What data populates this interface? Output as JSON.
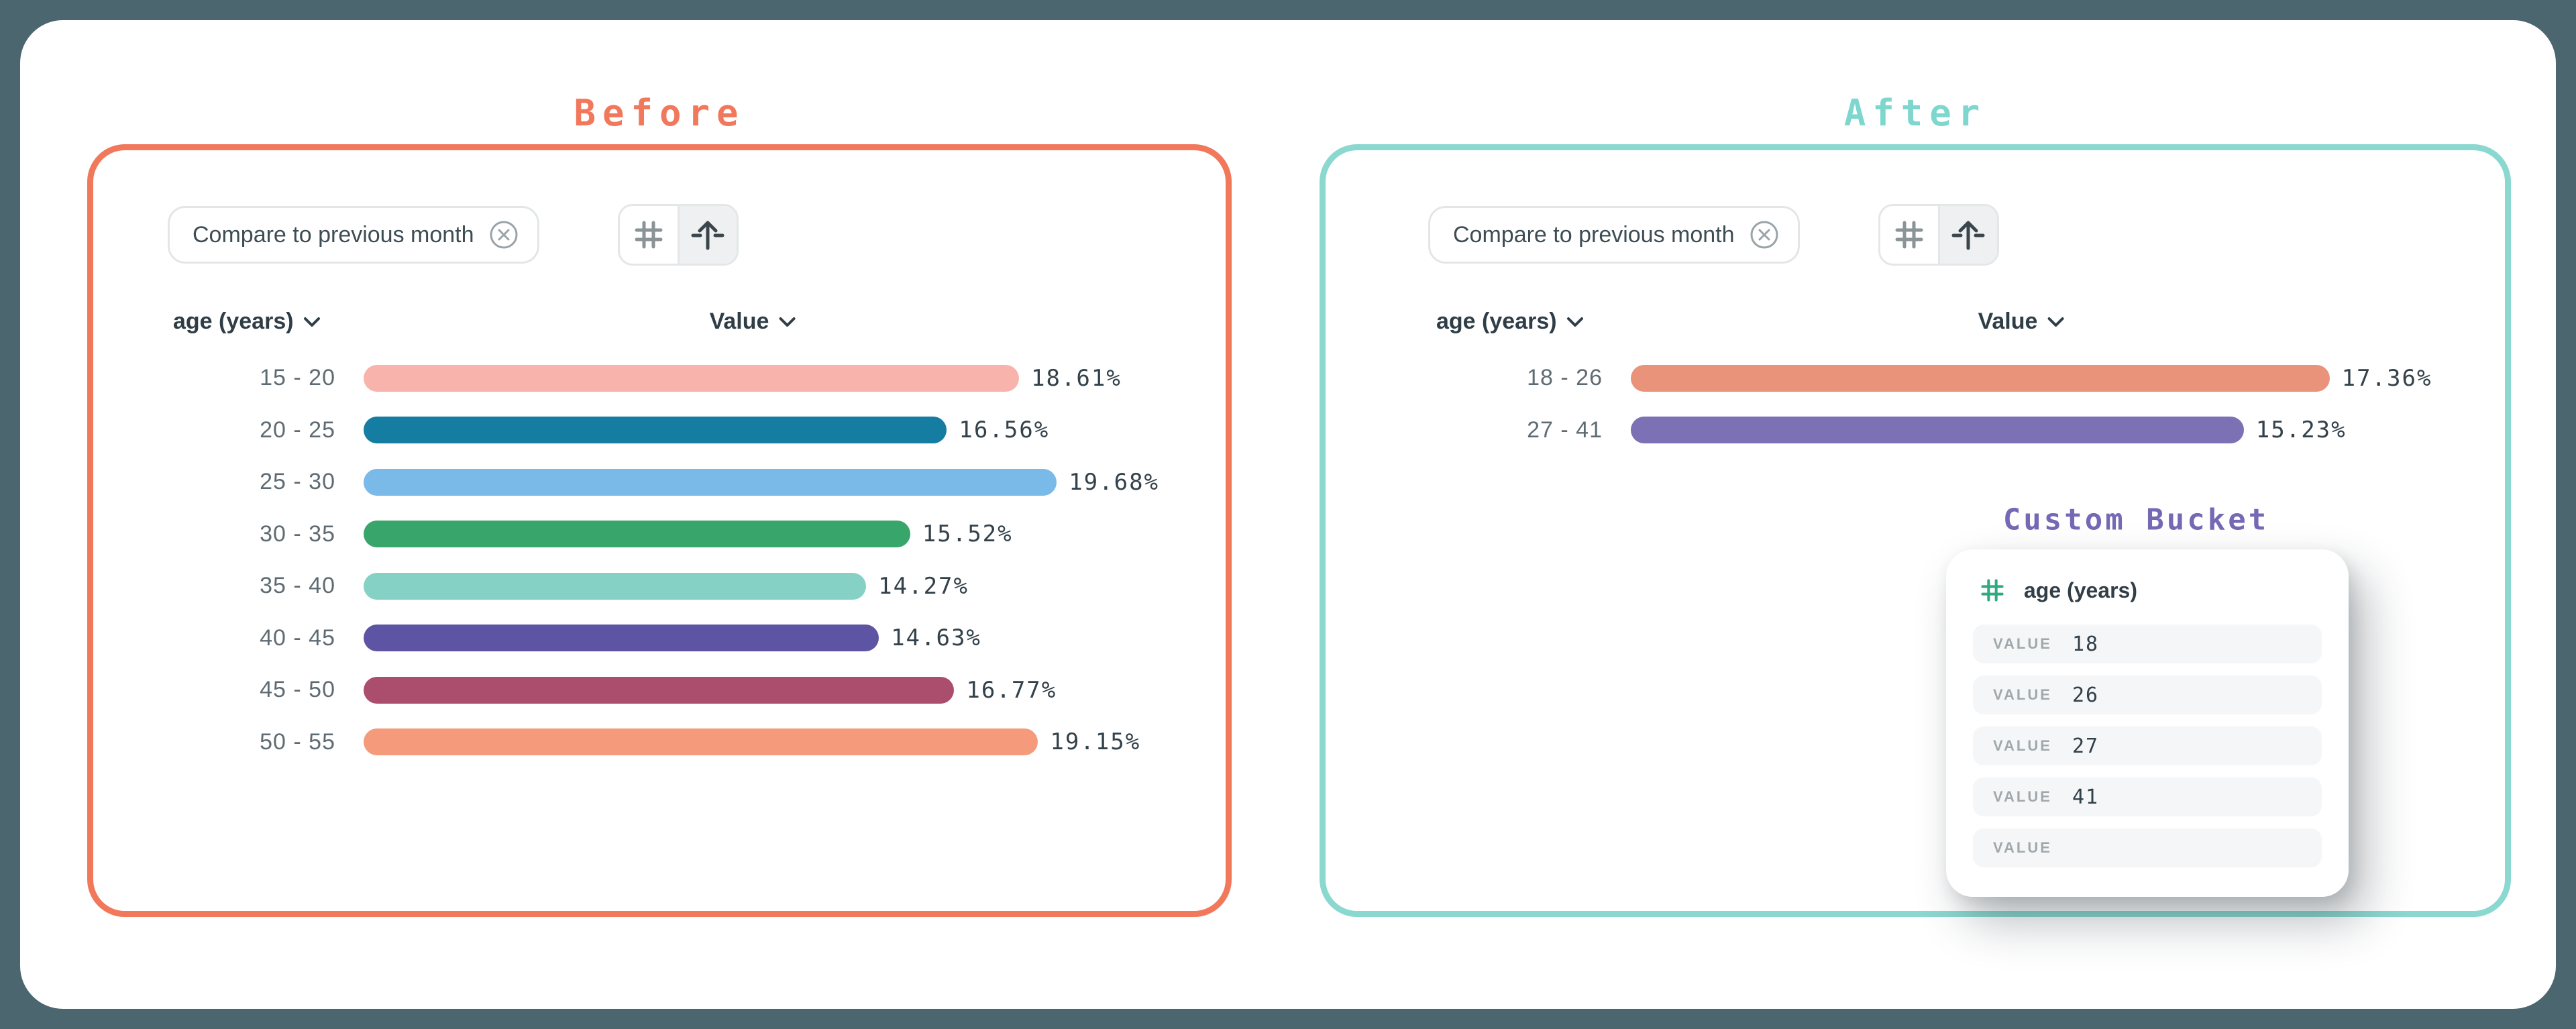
{
  "page": {
    "background_color": "#4C6670",
    "card_color": "#FFFFFF"
  },
  "before": {
    "title": "Before",
    "accent_color": "#F2785C",
    "chip": {
      "label": "Compare to previous month",
      "close_icon": "circle-x-icon"
    },
    "toolbar": {
      "left_icon": "hash-icon",
      "right_icon": "arrow-up-icon",
      "selected": "arrow-up-icon"
    },
    "columns": {
      "dimension": "age (years)",
      "value": "Value",
      "dropdown_icon": "chevron-down-icon"
    },
    "rows": [
      {
        "label": "15 - 20",
        "value": 18.61,
        "display": "18.61%",
        "color": "#F8B4AC"
      },
      {
        "label": "20 - 25",
        "value": 16.56,
        "display": "16.56%",
        "color": "#147DA1"
      },
      {
        "label": "25 - 30",
        "value": 19.68,
        "display": "19.68%",
        "color": "#79BAE8"
      },
      {
        "label": "30 - 35",
        "value": 15.52,
        "display": "15.52%",
        "color": "#38A56B"
      },
      {
        "label": "35 - 40",
        "value": 14.27,
        "display": "14.27%",
        "color": "#85D1C6"
      },
      {
        "label": "40 - 45",
        "value": 14.63,
        "display": "14.63%",
        "color": "#5D55A4"
      },
      {
        "label": "45 - 50",
        "value": 16.77,
        "display": "16.77%",
        "color": "#AB4E6D"
      },
      {
        "label": "50 - 55",
        "value": 19.15,
        "display": "19.15%",
        "color": "#F59B7C"
      }
    ]
  },
  "after": {
    "title": "After",
    "accent_color": "#8BD8D0",
    "chip": {
      "label": "Compare to previous month",
      "close_icon": "circle-x-icon"
    },
    "toolbar": {
      "left_icon": "hash-icon",
      "right_icon": "arrow-up-icon",
      "selected": "arrow-up-icon"
    },
    "columns": {
      "dimension": "age (years)",
      "value": "Value",
      "dropdown_icon": "chevron-down-icon"
    },
    "rows": [
      {
        "label": "18 - 26",
        "value": 17.36,
        "display": "17.36%",
        "color": "#E9937A"
      },
      {
        "label": "27 - 41",
        "value": 15.23,
        "display": "15.23%",
        "color": "#7B71B4"
      }
    ],
    "custom_bucket": {
      "title": "Custom Bucket",
      "accent_color": "#7568B5",
      "field_icon": "hash-icon",
      "field_icon_color": "#2FA97E",
      "field_label": "age (years)",
      "entries": [
        {
          "label": "VALUE",
          "value": "18"
        },
        {
          "label": "VALUE",
          "value": "26"
        },
        {
          "label": "VALUE",
          "value": "27"
        },
        {
          "label": "VALUE",
          "value": "41"
        },
        {
          "label": "VALUE",
          "value": ""
        }
      ]
    }
  },
  "chart_data": [
    {
      "type": "bar",
      "orientation": "horizontal",
      "title": "Before",
      "xlabel": "Value",
      "ylabel": "age (years)",
      "categories": [
        "15 - 20",
        "20 - 25",
        "25 - 30",
        "30 - 35",
        "35 - 40",
        "40 - 45",
        "45 - 50",
        "50 - 55"
      ],
      "values": [
        18.61,
        16.56,
        19.68,
        15.52,
        14.27,
        14.63,
        16.77,
        19.15
      ],
      "value_labels": [
        "18.61%",
        "16.56%",
        "19.68%",
        "15.52%",
        "14.27%",
        "14.63%",
        "16.77%",
        "19.15%"
      ],
      "bar_colors": [
        "#F8B4AC",
        "#147DA1",
        "#79BAE8",
        "#38A56B",
        "#85D1C6",
        "#5D55A4",
        "#AB4E6D",
        "#F59B7C"
      ],
      "grid": false,
      "legend": false
    },
    {
      "type": "bar",
      "orientation": "horizontal",
      "title": "After",
      "xlabel": "Value",
      "ylabel": "age (years)",
      "categories": [
        "18 - 26",
        "27 - 41"
      ],
      "values": [
        17.36,
        15.23
      ],
      "value_labels": [
        "17.36%",
        "15.23%"
      ],
      "bar_colors": [
        "#E9937A",
        "#7B71B4"
      ],
      "grid": false,
      "legend": false
    }
  ]
}
